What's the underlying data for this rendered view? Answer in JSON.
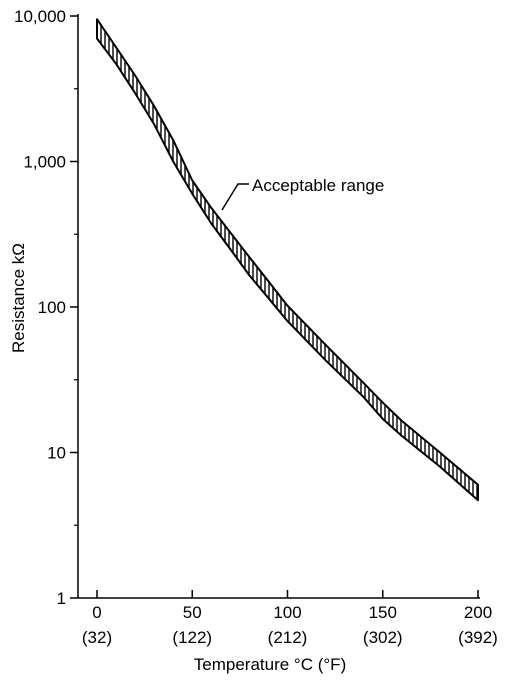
{
  "chart_data": {
    "type": "area",
    "title": "",
    "xlabel": "Temperature °C (°F)",
    "ylabel": "Resistance kΩ",
    "y_scale": "log",
    "xlim": [
      0,
      200
    ],
    "ylim": [
      1,
      10000
    ],
    "grid": false,
    "x_ticks": [
      {
        "value": 0,
        "label": "0",
        "sublabel": "(32)"
      },
      {
        "value": 50,
        "label": "50",
        "sublabel": "(122)"
      },
      {
        "value": 100,
        "label": "100",
        "sublabel": "(212)"
      },
      {
        "value": 150,
        "label": "150",
        "sublabel": "(302)"
      },
      {
        "value": 200,
        "label": "200",
        "sublabel": "(392)"
      }
    ],
    "y_ticks": [
      {
        "value": 1,
        "label": "1"
      },
      {
        "value": 10,
        "label": "10"
      },
      {
        "value": 100,
        "label": "100"
      },
      {
        "value": 1000,
        "label": "1,000"
      },
      {
        "value": 10000,
        "label": "10,000"
      }
    ],
    "series": [
      {
        "x": [
          0,
          10,
          20,
          30,
          40,
          50,
          60,
          70,
          80,
          90,
          100,
          120,
          140,
          150,
          160,
          180,
          200
        ],
        "upper": [
          9500,
          6100,
          3900,
          2400,
          1400,
          740,
          480,
          325,
          220,
          150,
          102,
          55,
          30,
          22,
          16.5,
          10,
          6.0
        ],
        "lower": [
          7000,
          4700,
          2950,
          1800,
          1000,
          600,
          375,
          250,
          165,
          115,
          80,
          43,
          24,
          17,
          13,
          8.0,
          4.7
        ]
      }
    ],
    "annotations": [
      {
        "text": "Acceptable range",
        "x": 63,
        "y": 420
      }
    ]
  }
}
